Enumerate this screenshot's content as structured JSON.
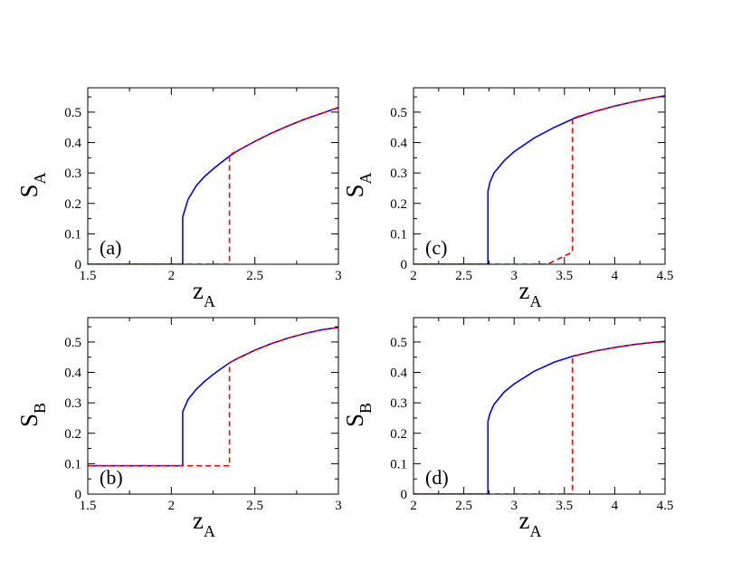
{
  "colors": {
    "solid": "#0000ff",
    "dashed": "#ff0000",
    "axis": "#000000"
  },
  "chart_data": [
    {
      "type": "line",
      "panel": "(a)",
      "xlabel": {
        "main": "z",
        "sub": "A"
      },
      "ylabel": {
        "main": "S",
        "sub": "A"
      },
      "xlim": [
        1.5,
        3
      ],
      "ylim": [
        0,
        0.58
      ],
      "xticks": [
        1.5,
        2,
        2.5,
        3
      ],
      "xtick_labels": [
        "1.5",
        "2",
        "2.5",
        "3"
      ],
      "yticks": [
        0,
        0.1,
        0.2,
        0.3,
        0.4,
        0.5
      ],
      "ytick_labels": [
        "0",
        "0.1",
        "0.2",
        "0.3",
        "0.4",
        "0.5"
      ],
      "series": [
        {
          "style": "solid",
          "color": "#0000ff",
          "x": [
            1.5,
            2.068,
            2.068,
            2.1,
            2.15,
            2.2,
            2.25,
            2.3,
            2.35,
            2.4,
            2.5,
            2.6,
            2.7,
            2.8,
            2.9,
            3.0
          ],
          "y": [
            0,
            0,
            0.155,
            0.213,
            0.259,
            0.289,
            0.313,
            0.335,
            0.356,
            0.374,
            0.404,
            0.431,
            0.455,
            0.477,
            0.496,
            0.515
          ]
        },
        {
          "style": "dashed",
          "color": "#ff0000",
          "x": [
            1.5,
            2.348,
            2.348,
            2.4,
            2.5,
            2.6,
            2.7,
            2.8,
            2.9,
            3.0
          ],
          "y": [
            0,
            0,
            0.36,
            0.374,
            0.404,
            0.431,
            0.455,
            0.477,
            0.496,
            0.515
          ]
        }
      ]
    },
    {
      "type": "line",
      "panel": "(c)",
      "xlabel": {
        "main": "z",
        "sub": "A"
      },
      "ylabel": {
        "main": "S",
        "sub": "A"
      },
      "xlim": [
        2,
        4.5
      ],
      "ylim": [
        0,
        0.58
      ],
      "xticks": [
        2,
        2.5,
        3,
        3.5,
        4,
        4.5
      ],
      "xtick_labels": [
        "2",
        "2.5",
        "3",
        "3.5",
        "4",
        "4.5"
      ],
      "yticks": [
        0,
        0.1,
        0.2,
        0.3,
        0.4,
        0.5
      ],
      "ytick_labels": [
        "0",
        "0.1",
        "0.2",
        "0.3",
        "0.4",
        "0.5"
      ],
      "series": [
        {
          "style": "solid",
          "color": "#0000ff",
          "x": [
            2,
            2.74,
            2.74,
            2.76,
            2.8,
            2.9,
            3.0,
            3.2,
            3.4,
            3.6,
            3.8,
            4.0,
            4.2,
            4.4,
            4.5
          ],
          "y": [
            0,
            0,
            0.24,
            0.27,
            0.3,
            0.34,
            0.37,
            0.415,
            0.45,
            0.48,
            0.502,
            0.52,
            0.535,
            0.548,
            0.554
          ]
        },
        {
          "style": "dashed",
          "color": "#ff0000",
          "x": [
            2,
            3.33,
            3.58,
            3.58,
            3.8,
            4.0,
            4.2,
            4.4,
            4.5
          ],
          "y": [
            0,
            0,
            0.04,
            0.48,
            0.502,
            0.52,
            0.535,
            0.548,
            0.554
          ]
        }
      ]
    },
    {
      "type": "line",
      "panel": "(b)",
      "xlabel": {
        "main": "z",
        "sub": "A"
      },
      "ylabel": {
        "main": "S",
        "sub": "B"
      },
      "xlim": [
        1.5,
        3
      ],
      "ylim": [
        0,
        0.58
      ],
      "xticks": [
        1.5,
        2,
        2.5,
        3
      ],
      "xtick_labels": [
        "1.5",
        "2",
        "2.5",
        "3"
      ],
      "yticks": [
        0,
        0.1,
        0.2,
        0.3,
        0.4,
        0.5
      ],
      "ytick_labels": [
        "0",
        "0.1",
        "0.2",
        "0.3",
        "0.4",
        "0.5"
      ],
      "series": [
        {
          "style": "solid",
          "color": "#0000ff",
          "x": [
            1.5,
            2.068,
            2.068,
            2.1,
            2.15,
            2.2,
            2.25,
            2.3,
            2.35,
            2.4,
            2.5,
            2.6,
            2.7,
            2.8,
            2.9,
            3.0
          ],
          "y": [
            0.093,
            0.093,
            0.27,
            0.311,
            0.345,
            0.371,
            0.393,
            0.413,
            0.432,
            0.447,
            0.473,
            0.495,
            0.513,
            0.528,
            0.54,
            0.548
          ]
        },
        {
          "style": "dashed",
          "color": "#ff0000",
          "x": [
            1.5,
            2.348,
            2.348,
            2.4,
            2.5,
            2.6,
            2.7,
            2.8,
            2.9,
            3.0
          ],
          "y": [
            0.093,
            0.093,
            0.432,
            0.447,
            0.473,
            0.495,
            0.513,
            0.528,
            0.54,
            0.548
          ]
        }
      ]
    },
    {
      "type": "line",
      "panel": "(d)",
      "xlabel": {
        "main": "z",
        "sub": "A"
      },
      "ylabel": {
        "main": "S",
        "sub": "B"
      },
      "xlim": [
        2,
        4.5
      ],
      "ylim": [
        0,
        0.58
      ],
      "xticks": [
        2,
        2.5,
        3,
        3.5,
        4,
        4.5
      ],
      "xtick_labels": [
        "2",
        "2.5",
        "3",
        "3.5",
        "4",
        "4.5"
      ],
      "yticks": [
        0,
        0.1,
        0.2,
        0.3,
        0.4,
        0.5
      ],
      "ytick_labels": [
        "0",
        "0.1",
        "0.2",
        "0.3",
        "0.4",
        "0.5"
      ],
      "series": [
        {
          "style": "solid",
          "color": "#0000ff",
          "x": [
            2,
            2.74,
            2.74,
            2.76,
            2.8,
            2.9,
            3.0,
            3.2,
            3.4,
            3.6,
            3.8,
            4.0,
            4.2,
            4.4,
            4.5
          ],
          "y": [
            0,
            0,
            0.24,
            0.265,
            0.295,
            0.335,
            0.362,
            0.404,
            0.434,
            0.455,
            0.47,
            0.482,
            0.492,
            0.499,
            0.502
          ]
        },
        {
          "style": "dashed",
          "color": "#ff0000",
          "x": [
            2,
            3.58,
            3.58,
            3.8,
            4.0,
            4.2,
            4.4,
            4.5
          ],
          "y": [
            0,
            0,
            0.452,
            0.47,
            0.482,
            0.492,
            0.499,
            0.502
          ]
        }
      ]
    }
  ]
}
